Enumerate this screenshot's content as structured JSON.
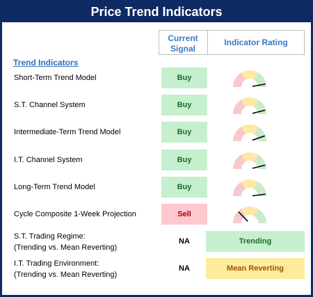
{
  "title": "Price Trend Indicators",
  "headers": {
    "signal_line1": "Current",
    "signal_line2": "Signal",
    "rating": "Indicator Rating"
  },
  "section": "Trend Indicators",
  "colors": {
    "navy": "#0e2a63",
    "gauge_red": "#f8c9cc",
    "gauge_yellow": "#fde9a6",
    "gauge_green": "#c9ebc9"
  },
  "rows": [
    {
      "label": "Short-Term Trend Model",
      "signal": "Buy",
      "needle": 0.95
    },
    {
      "label": "S.T. Channel System",
      "signal": "Buy",
      "needle": 0.93
    },
    {
      "label": "Intermediate-Term Trend Model",
      "signal": "Buy",
      "needle": 0.9
    },
    {
      "label": "I.T. Channel System",
      "signal": "Buy",
      "needle": 0.93
    },
    {
      "label": "Long-Term Trend Model",
      "signal": "Buy",
      "needle": 0.97
    },
    {
      "label": "Cycle Composite 1-Week Projection",
      "signal": "Sell",
      "needle": 0.25
    }
  ],
  "regimes": [
    {
      "line1": "S.T. Trading Regime:",
      "line2": "(Trending vs. Mean Reverting)",
      "signal": "NA",
      "rating": "Trending"
    },
    {
      "line1": "I.T. Trading Environment:",
      "line2": "(Trending vs. Mean Reverting)",
      "signal": "NA",
      "rating": "Mean Reverting"
    }
  ]
}
